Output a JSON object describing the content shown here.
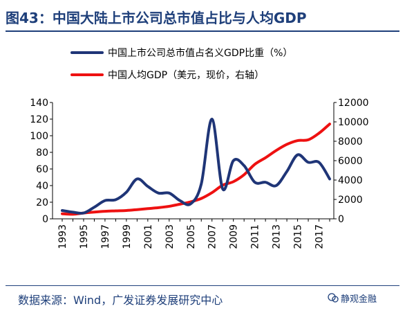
{
  "header": {
    "title": "图43：中国大陆上市公司总市值占比与人均GDP"
  },
  "footer": {
    "source": "数据来源：Wind，广发证券发展研究中心",
    "brand": "静观金融"
  },
  "chart_data": {
    "type": "line",
    "x": [
      1993,
      1994,
      1995,
      1996,
      1997,
      1998,
      1999,
      2000,
      2001,
      2002,
      2003,
      2004,
      2005,
      2006,
      2007,
      2008,
      2009,
      2010,
      2011,
      2012,
      2013,
      2014,
      2015,
      2016,
      2017,
      2018
    ],
    "xticks": [
      "1993",
      "1995",
      "1997",
      "1999",
      "2001",
      "2003",
      "2005",
      "2007",
      "2009",
      "2011",
      "2013",
      "2015",
      "2017"
    ],
    "left_axis": {
      "ylim": [
        0,
        140
      ],
      "ticks": [
        "0",
        "20",
        "40",
        "60",
        "80",
        "100",
        "120",
        "140"
      ]
    },
    "right_axis": {
      "ylim": [
        0,
        12000
      ],
      "ticks": [
        "0",
        "2000",
        "4000",
        "6000",
        "8000",
        "10000",
        "12000"
      ]
    },
    "legend_position": "top",
    "series": [
      {
        "name": "中国上市公司总市值占名义GDP比重（%）",
        "axis": "left",
        "color": "#1f3577",
        "values": [
          10,
          8,
          7,
          14,
          22,
          23,
          32,
          48,
          39,
          31,
          31,
          22,
          18,
          42,
          120,
          36,
          70,
          64,
          44,
          44,
          40,
          57,
          77,
          68,
          68,
          48
        ]
      },
      {
        "name": "中国人均GDP（美元，现价，右轴）",
        "axis": "right",
        "color": "#ee1111",
        "values": [
          520,
          475,
          600,
          700,
          780,
          820,
          860,
          950,
          1050,
          1150,
          1290,
          1510,
          1750,
          2100,
          2700,
          3470,
          3830,
          4550,
          5620,
          6300,
          7050,
          7680,
          8070,
          8150,
          8830,
          9780
        ]
      }
    ]
  }
}
